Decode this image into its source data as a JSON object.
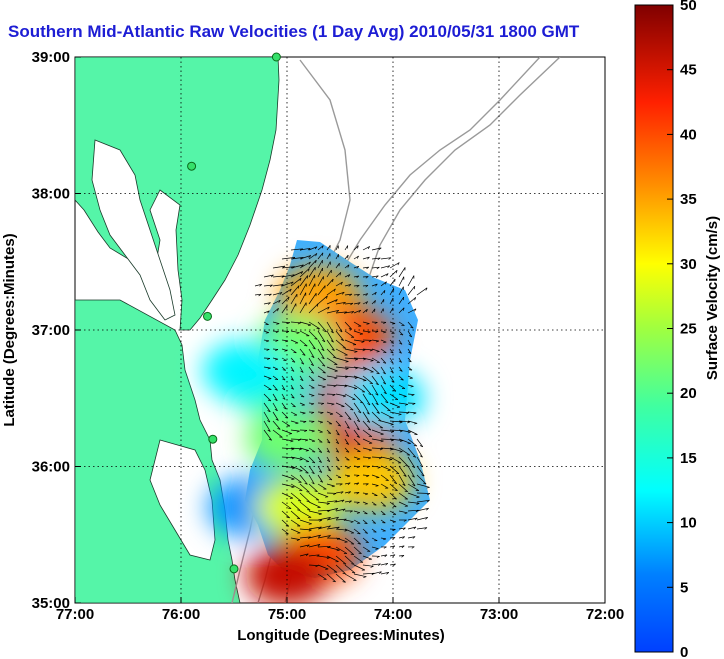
{
  "title": "Southern Mid-Atlantic Raw Velocities (1 Day Avg) 2010/05/31 1800 GMT",
  "chart_data": {
    "type": "heatmap",
    "xlabel": "Longitude (Degrees:Minutes)",
    "ylabel": "Latitude (Degrees:Minutes)",
    "xlim": [
      -77,
      -72
    ],
    "ylim": [
      35,
      39
    ],
    "x_ticks": [
      {
        "value": -77,
        "label": "77:00"
      },
      {
        "value": -76,
        "label": "76:00"
      },
      {
        "value": -75,
        "label": "75:00"
      },
      {
        "value": -74,
        "label": "74:00"
      },
      {
        "value": -73,
        "label": "73:00"
      },
      {
        "value": -72,
        "label": "72:00"
      }
    ],
    "y_ticks": [
      {
        "value": 35,
        "label": "35:00"
      },
      {
        "value": 36,
        "label": "36:00"
      },
      {
        "value": 37,
        "label": "37:00"
      },
      {
        "value": 38,
        "label": "38:00"
      },
      {
        "value": 39,
        "label": "39:00"
      }
    ],
    "grid": true,
    "colorbar": {
      "label": "Surface Velocity (cm/s)",
      "range": [
        0,
        50
      ],
      "ticks": [
        0,
        5,
        10,
        15,
        20,
        25,
        30,
        35,
        40,
        45,
        50
      ],
      "tick_labels": [
        "0",
        "5",
        "10",
        "15",
        "20",
        "25",
        "30",
        "35",
        "40",
        "45",
        "50"
      ],
      "colormap": "jet"
    },
    "field_regions": [
      {
        "lon": -74.7,
        "lat": 37.25,
        "speed": 35
      },
      {
        "lon": -74.4,
        "lat": 36.95,
        "speed": 40
      },
      {
        "lon": -74.9,
        "lat": 36.9,
        "speed": 22
      },
      {
        "lon": -74.3,
        "lat": 36.5,
        "speed": 40
      },
      {
        "lon": -74.35,
        "lat": 36.25,
        "speed": 45
      },
      {
        "lon": -75.2,
        "lat": 36.6,
        "speed": 18
      },
      {
        "lon": -75.4,
        "lat": 36.7,
        "speed": 12
      },
      {
        "lon": -74.1,
        "lat": 36.5,
        "speed": 11
      },
      {
        "lon": -75.0,
        "lat": 36.2,
        "speed": 22
      },
      {
        "lon": -74.2,
        "lat": 35.9,
        "speed": 33
      },
      {
        "lon": -75.35,
        "lat": 35.7,
        "speed": 7
      },
      {
        "lon": -74.9,
        "lat": 35.7,
        "speed": 28
      },
      {
        "lon": -74.7,
        "lat": 35.35,
        "speed": 40
      },
      {
        "lon": -75.0,
        "lat": 35.2,
        "speed": 46
      }
    ],
    "stations": [
      {
        "lon": -75.1,
        "lat": 39.0
      },
      {
        "lon": -75.9,
        "lat": 38.2
      },
      {
        "lon": -75.75,
        "lat": 37.1
      },
      {
        "lon": -75.7,
        "lat": 36.2
      },
      {
        "lon": -75.5,
        "lat": 35.25
      }
    ]
  }
}
